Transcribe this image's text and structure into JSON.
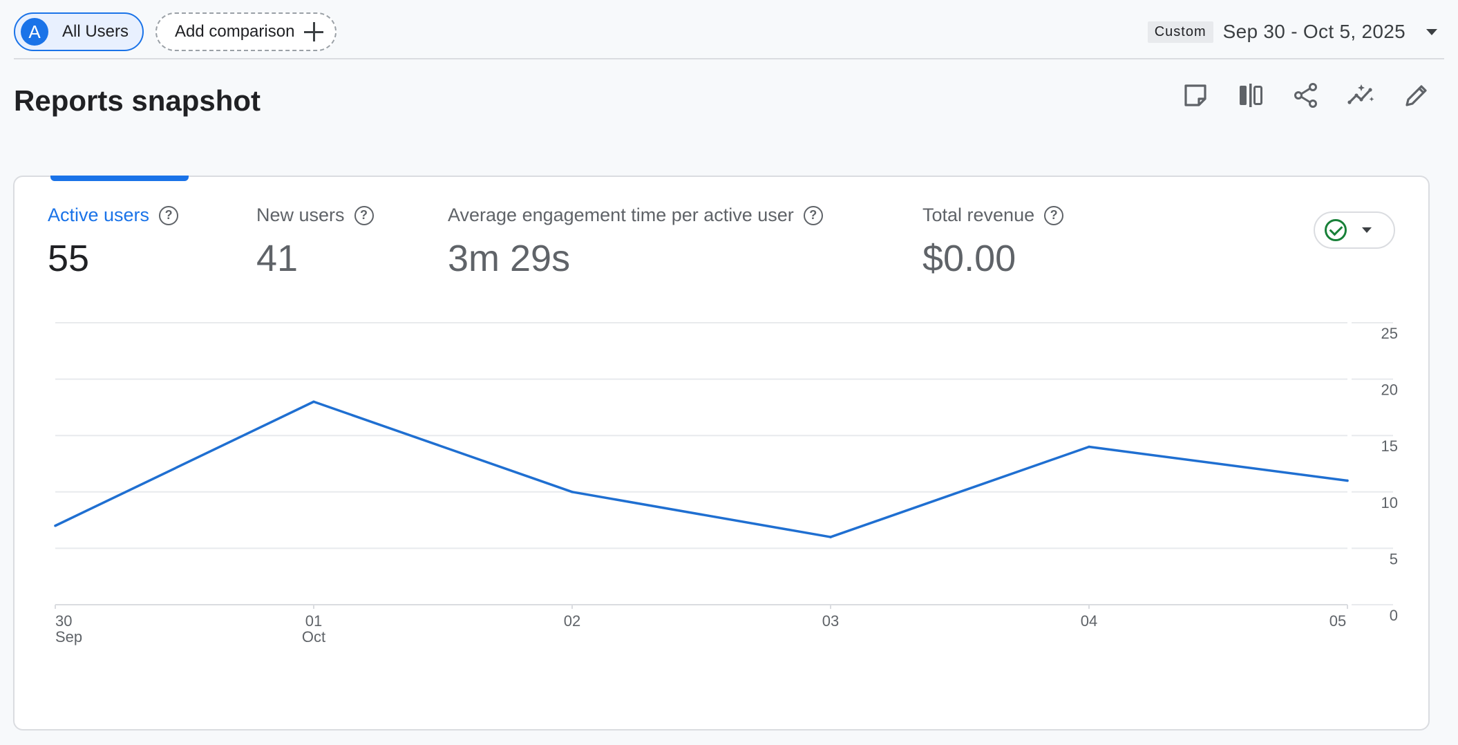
{
  "topbar": {
    "comparison_chip": {
      "avatar_letter": "A",
      "label": "All Users"
    },
    "add_comparison_label": "Add comparison",
    "date_badge": "Custom",
    "date_range": "Sep 30 - Oct 5, 2025"
  },
  "page_title": "Reports snapshot",
  "toolbar": {
    "icons": [
      "note-icon",
      "compare-columns-icon",
      "share-icon",
      "insights-icon",
      "edit-pencil-icon"
    ]
  },
  "metrics": [
    {
      "label": "Active users",
      "value": "55",
      "active": true
    },
    {
      "label": "New users",
      "value": "41",
      "active": false
    },
    {
      "label": "Average engagement time per active user",
      "value": "3m 29s",
      "active": false
    },
    {
      "label": "Total revenue",
      "value": "$0.00",
      "active": false
    }
  ],
  "help_glyph": "?",
  "colors": {
    "accent": "#1a73e8",
    "line": "#1f6fd1",
    "status_ok": "#188038"
  },
  "chart_data": {
    "type": "line",
    "x": [
      "30 Sep",
      "01 Oct",
      "02",
      "03",
      "04",
      "05"
    ],
    "x_tick_labels": [
      {
        "day": "30",
        "month": "Sep"
      },
      {
        "day": "01",
        "month": "Oct"
      },
      {
        "day": "02",
        "month": ""
      },
      {
        "day": "03",
        "month": ""
      },
      {
        "day": "04",
        "month": ""
      },
      {
        "day": "05",
        "month": ""
      }
    ],
    "series": [
      {
        "values": [
          7,
          18,
          10,
          6,
          14,
          11
        ]
      }
    ],
    "ylim": [
      0,
      25
    ],
    "y_ticks": [
      0,
      5,
      10,
      15,
      20,
      25
    ],
    "y_axis_position": "right",
    "grid": true
  }
}
